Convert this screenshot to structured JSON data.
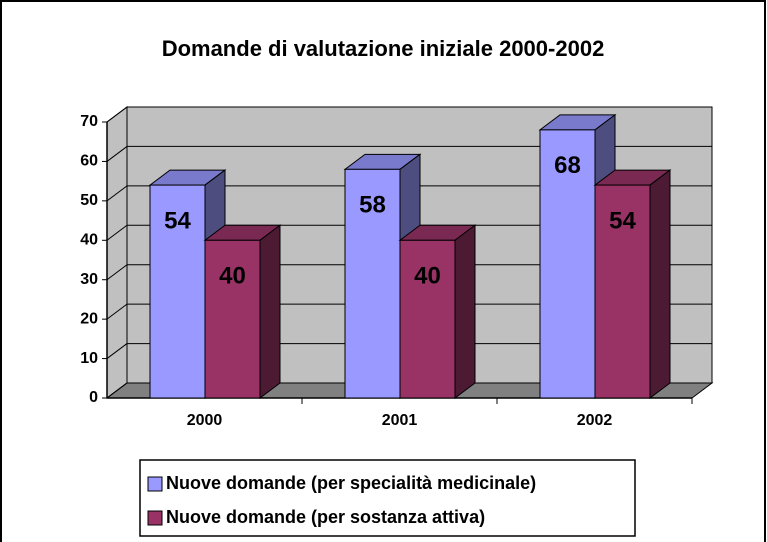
{
  "chart_data": {
    "type": "bar3d",
    "title": "Domande di valutazione iniziale 2000-2002",
    "categories": [
      "2000",
      "2001",
      "2002"
    ],
    "series": [
      {
        "name": "Nuove domande (per specialità medicinale)",
        "color": "#9999ff",
        "values": [
          54,
          58,
          68
        ]
      },
      {
        "name": "Nuove domande (per sostanza attiva)",
        "color": "#993366",
        "values": [
          40,
          40,
          54
        ]
      }
    ],
    "ylim": [
      0,
      70
    ],
    "yticks": [
      0,
      10,
      20,
      30,
      40,
      50,
      60,
      70
    ],
    "grid": true,
    "legend": "bottom"
  }
}
